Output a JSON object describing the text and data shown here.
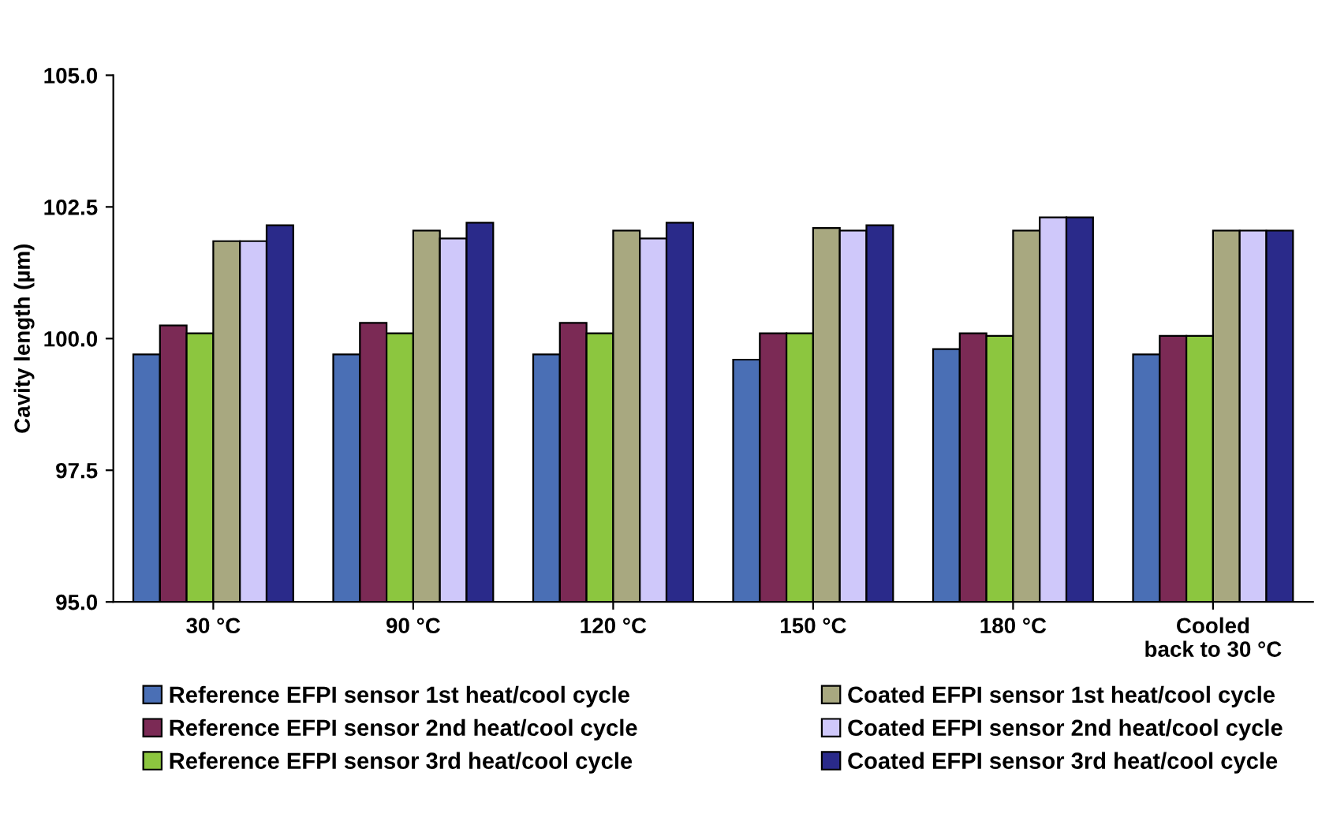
{
  "chart_data": {
    "type": "bar",
    "ylabel": "Cavity length (µm)",
    "categories": [
      "30 °C",
      "90 °C",
      "120 °C",
      "150 °C",
      "180 °C",
      "Cooled\nback to 30 °C"
    ],
    "series": [
      {
        "name": "Reference EFPI sensor 1st heat/cool cycle",
        "color": "#4a6fb5",
        "values": [
          99.7,
          99.7,
          99.7,
          99.6,
          99.8,
          99.7
        ]
      },
      {
        "name": "Reference EFPI sensor 2nd heat/cool cycle",
        "color": "#7b2a55",
        "values": [
          100.25,
          100.3,
          100.3,
          100.1,
          100.1,
          100.05
        ]
      },
      {
        "name": "Reference EFPI sensor 3rd heat/cool cycle",
        "color": "#8cc63f",
        "values": [
          100.1,
          100.1,
          100.1,
          100.1,
          100.05,
          100.05
        ]
      },
      {
        "name": "Coated EFPI sensor 1st heat/cool cycle",
        "color": "#a8a880",
        "values": [
          101.85,
          102.05,
          102.05,
          102.1,
          102.05,
          102.05
        ]
      },
      {
        "name": "Coated EFPI sensor 2nd heat/cool cycle",
        "color": "#cfc8fa",
        "values": [
          101.85,
          101.9,
          101.9,
          102.05,
          102.3,
          102.05
        ]
      },
      {
        "name": "Coated EFPI sensor 3rd heat/cool cycle",
        "color": "#2a2a8a",
        "values": [
          102.15,
          102.2,
          102.2,
          102.15,
          102.3,
          102.05
        ]
      }
    ],
    "ylim": [
      95.0,
      105.0
    ],
    "yticks": [
      {
        "value": 95.0,
        "label": "95.0"
      },
      {
        "value": 97.5,
        "label": "97.5"
      },
      {
        "value": 100.0,
        "label": "100.0"
      },
      {
        "value": 102.5,
        "label": "102.5"
      },
      {
        "value": 105.0,
        "label": "105.0"
      }
    ],
    "grid": false,
    "legend": "bottom"
  }
}
